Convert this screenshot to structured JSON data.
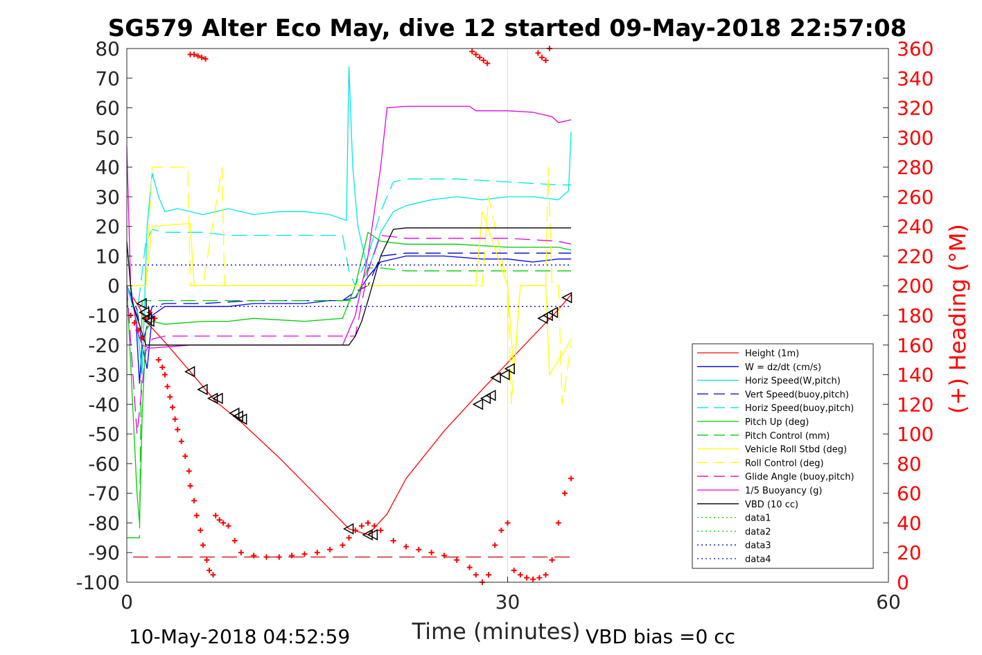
{
  "chart_data": {
    "type": "line",
    "title": "SG579 Alter Eco May, dive 12 started 09-May-2018 22:57:08",
    "xlabel": "Time (minutes)",
    "ylabel": "",
    "y2label": "(+) Heading (°M)",
    "xlim": [
      0,
      60
    ],
    "ylim": [
      -100,
      80
    ],
    "y2lim": [
      0,
      360
    ],
    "xticks": [
      "0",
      "30",
      "60"
    ],
    "yticks": [
      "80",
      "70",
      "60",
      "50",
      "40",
      "30",
      "20",
      "10",
      "0",
      "-10",
      "-20",
      "-30",
      "-40",
      "-50",
      "-60",
      "-70",
      "-80",
      "-90",
      "-100"
    ],
    "y2ticks": [
      "360",
      "340",
      "320",
      "300",
      "280",
      "260",
      "240",
      "220",
      "200",
      "180",
      "160",
      "140",
      "120",
      "100",
      "80",
      "60",
      "40",
      "20",
      "0"
    ],
    "grid": "x at 30 only",
    "legend_position": "lower-right",
    "footer_left": "10-May-2018 04:52:59",
    "footer_right": "VBD bias =0 cc",
    "series": [
      {
        "name": "Height (1m)",
        "color": "#ff0000",
        "dash": "solid",
        "x": [
          0.5,
          1.2,
          1.5,
          3,
          5,
          7,
          9,
          12,
          15,
          17.5,
          19,
          20.5,
          22,
          25,
          28,
          30,
          32,
          34,
          35
        ],
        "y": [
          -4,
          -9,
          -12,
          -19,
          -29,
          -39,
          -46,
          -58,
          -71,
          -82,
          -84,
          -77,
          -65,
          -49,
          -35,
          -26,
          -17,
          -8,
          -3
        ]
      },
      {
        "name": "W = dz/dt (cm/s)",
        "color": "#0000ff",
        "dash": "solid",
        "x": [
          0,
          0.7,
          1.0,
          1.2,
          1.6,
          2,
          3,
          6,
          8,
          10,
          12,
          14,
          16,
          17,
          18,
          19,
          20,
          22,
          25,
          28,
          30,
          32,
          34,
          35
        ],
        "y": [
          0,
          -10,
          -33,
          -20,
          -28,
          -10,
          -7,
          -7,
          -7,
          -6,
          -6,
          -6,
          -5,
          -5,
          -4,
          3,
          8,
          10,
          10,
          9,
          9,
          8,
          9,
          9
        ]
      },
      {
        "name": "Horiz Speed(W,pitch)",
        "color": "#00e5e5",
        "dash": "solid",
        "x": [
          0,
          0.8,
          1.2,
          1.6,
          2,
          2.5,
          3,
          4,
          6,
          8,
          10,
          12,
          14,
          16,
          17.3,
          17.5,
          17.8,
          18.2,
          19,
          20,
          21,
          22,
          24,
          26,
          28,
          30,
          32,
          34,
          34.8,
          35
        ],
        "y": [
          0,
          -12,
          -30,
          20,
          38,
          30,
          25,
          26,
          24,
          26,
          24,
          25,
          25,
          24,
          22,
          74,
          40,
          20,
          5,
          18,
          25,
          27,
          29,
          30,
          29,
          30,
          30,
          29,
          32,
          52
        ]
      },
      {
        "name": "Vert Speed(buoy,pitch)",
        "color": "#0000cc",
        "dash": "dashed",
        "x": [
          0,
          0.8,
          1.2,
          2,
          3,
          6,
          10,
          14,
          17,
          18,
          19,
          20,
          22,
          26,
          30,
          34,
          35
        ],
        "y": [
          0,
          -8,
          -20,
          -7,
          -6,
          -6,
          -5,
          -5,
          -5,
          -2,
          0,
          10,
          11,
          11,
          11,
          11,
          11
        ]
      },
      {
        "name": "Horiz Speed(buoy,pitch)",
        "color": "#00e5e5",
        "dash": "dashed",
        "x": [
          0,
          0.8,
          1.5,
          2,
          3,
          6,
          8,
          10,
          14,
          17,
          17.5,
          18,
          19,
          20,
          21,
          22,
          26,
          30,
          34,
          35
        ],
        "y": [
          0,
          -10,
          15,
          19,
          18,
          18,
          17,
          17,
          17,
          17,
          5,
          0,
          10,
          25,
          35,
          36,
          36,
          35,
          34,
          34
        ]
      },
      {
        "name": "Pitch Up (deg)",
        "color": "#00cc00",
        "dash": "solid",
        "x": [
          0,
          0.8,
          1.0,
          1.2,
          1.5,
          2,
          3,
          6,
          8,
          10,
          14,
          17,
          18,
          19,
          20,
          22,
          26,
          30,
          34,
          35
        ],
        "y": [
          0,
          -70,
          -80,
          -45,
          -15,
          -12,
          -13,
          -12,
          -12,
          -11,
          -12,
          -11,
          0,
          18,
          15,
          14,
          14,
          13,
          13,
          12
        ]
      },
      {
        "name": "Pitch Control (mm)",
        "color": "#00cc00",
        "dash": "dashed",
        "x": [
          0,
          0.6,
          1.0,
          1.2,
          2,
          17,
          18,
          19,
          20,
          22,
          35
        ],
        "y": [
          -85,
          -85,
          -85,
          -5,
          -5,
          -5,
          -5,
          6,
          6,
          5,
          5
        ]
      },
      {
        "name": "Vehicle Roll Stbd (deg)",
        "color": "#ffff00",
        "dash": "solid",
        "x": [
          0,
          1.5,
          2,
          5,
          5.3,
          7,
          8,
          8.5,
          17,
          17.5,
          18,
          19,
          20,
          27.5,
          28,
          30,
          30.5,
          31,
          33,
          33.3,
          34,
          34.5,
          35
        ],
        "y": [
          0,
          0,
          20,
          21,
          0,
          0,
          0,
          0,
          0,
          0,
          0,
          0,
          0,
          0,
          25,
          0,
          -30,
          0,
          0,
          -30,
          -25,
          -22,
          -18
        ]
      },
      {
        "name": "Roll Control (deg)",
        "color": "#ffff00",
        "dash": "dashed",
        "x": [
          0,
          1.5,
          2,
          4.8,
          5,
          6,
          7.5,
          7.7,
          8,
          17,
          20,
          28,
          28.5,
          30,
          30.3,
          31,
          33,
          33.2,
          33.5,
          34,
          34.3,
          35
        ],
        "y": [
          0,
          0,
          40,
          40,
          0,
          0,
          40,
          0,
          0,
          0,
          0,
          0,
          30,
          0,
          -40,
          0,
          0,
          40,
          0,
          0,
          -40,
          -20
        ]
      },
      {
        "name": "Glide Angle (buoy,pitch)",
        "color": "#e000e0",
        "dash": "dashed",
        "x": [
          0,
          0.8,
          1.5,
          2,
          3,
          6,
          10,
          14,
          17,
          18,
          19,
          20,
          22,
          26,
          30,
          34,
          35
        ],
        "y": [
          0,
          -50,
          -22,
          -18,
          -17,
          -17,
          -17,
          -17,
          -17,
          -17,
          5,
          17,
          16,
          16,
          16,
          15,
          14
        ]
      },
      {
        "name": "1/5 Buoyancy (g)",
        "color": "#e000e0",
        "dash": "solid",
        "x": [
          0,
          0.3,
          0.8,
          1.2,
          1.8,
          2,
          5,
          6,
          8,
          10,
          17,
          18,
          19,
          20,
          20.5,
          22,
          27,
          27.5,
          30,
          32,
          33.5,
          34,
          35
        ],
        "y": [
          47,
          0,
          -15,
          -20,
          -21,
          -21,
          -20,
          -20,
          -20,
          -20,
          -20,
          -10,
          10,
          40,
          60,
          60.5,
          60.5,
          59,
          59,
          58.5,
          57,
          55,
          56
        ]
      },
      {
        "name": "VBD (10 cc)",
        "color": "#000000",
        "dash": "solid",
        "x": [
          0,
          0.4,
          1.5,
          2,
          17,
          17.5,
          18,
          18.5,
          19,
          20,
          21,
          22,
          35
        ],
        "y": [
          15,
          -5,
          -20,
          -20,
          -20,
          -20,
          -17,
          -12,
          -5,
          10,
          19,
          19.5,
          19.5
        ]
      },
      {
        "name": "data1",
        "color": "#00cc00",
        "dash": "dotted",
        "x": [],
        "y": []
      },
      {
        "name": "data2",
        "color": "#00cc00",
        "dash": "dotted",
        "x": [],
        "y": []
      },
      {
        "name": "data3",
        "color": "#0000cc",
        "dash": "dotted",
        "x": [
          0,
          35
        ],
        "y": [
          7,
          7
        ]
      },
      {
        "name": "data4",
        "color": "#0000cc",
        "dash": "dotted",
        "x": [
          0,
          35
        ],
        "y": [
          -7,
          -7
        ]
      }
    ],
    "heading_points": {
      "axis": "right",
      "color": "#ff0000",
      "x": [
        0.3,
        0.6,
        0.9,
        1.2,
        1.5,
        1.8,
        2.2,
        2.5,
        2.8,
        3,
        3.2,
        3.4,
        3.6,
        3.8,
        4,
        4.3,
        4.6,
        4.9,
        5,
        5.3,
        5.5,
        5.8,
        6,
        6.3,
        6.5,
        6.8,
        7,
        7.3,
        7.6,
        8,
        8.5,
        9,
        10,
        11,
        12,
        13,
        14,
        15,
        16,
        17,
        17.5,
        18,
        18.5,
        19,
        19.5,
        20,
        21,
        22,
        23,
        24,
        25,
        26,
        27,
        27.5,
        28,
        28.5,
        29,
        29.5,
        30,
        30.5,
        31,
        31.5,
        32,
        32.5,
        33,
        33.5,
        34,
        34.5,
        35
      ],
      "y": [
        180,
        175,
        170,
        165,
        178,
        182,
        178,
        150,
        145,
        140,
        132,
        125,
        118,
        110,
        103,
        95,
        85,
        75,
        65,
        55,
        45,
        35,
        25,
        15,
        8,
        5,
        45,
        42,
        40,
        38,
        28,
        20,
        18,
        17,
        17,
        18,
        19,
        20,
        22,
        25,
        30,
        35,
        38,
        40,
        38,
        35,
        28,
        24,
        22,
        20,
        18,
        15,
        10,
        5,
        0,
        5,
        25,
        35,
        40,
        8,
        5,
        3,
        2,
        3,
        5,
        15,
        40,
        60,
        70
      ]
    },
    "heading_top_points": {
      "x": [
        5,
        5.3,
        5.6,
        5.9,
        6.2,
        27.2,
        27.5,
        27.8,
        28.1,
        28.4,
        32.4,
        32.7,
        33,
        33.3
      ],
      "y": [
        356,
        356,
        355,
        354,
        353,
        358,
        356,
        354,
        352,
        350,
        357,
        354,
        352,
        360
      ]
    },
    "triangles": {
      "color": "#000000",
      "x": [
        1.2,
        1.4,
        1.6,
        1.8,
        5,
        6,
        6.8,
        7.2,
        8.5,
        8.8,
        9.1,
        17.5,
        19,
        19.4,
        27.7,
        28.3,
        28.7,
        29.1,
        29.8,
        30.2,
        32.8,
        33.2,
        33.6,
        34.7
      ],
      "y": [
        -6,
        -9,
        -11,
        -12,
        -29,
        -35,
        -38,
        -38,
        -43,
        -44,
        -45,
        -82,
        -84,
        -84,
        -40,
        -38,
        -37,
        -31,
        -30,
        -28,
        -11,
        -10,
        -9,
        -4
      ]
    },
    "reference_line": {
      "axis": "right",
      "color": "#cc0000",
      "dash": "dashed",
      "x": [
        0.5,
        35
      ],
      "y": [
        17,
        17
      ]
    }
  }
}
